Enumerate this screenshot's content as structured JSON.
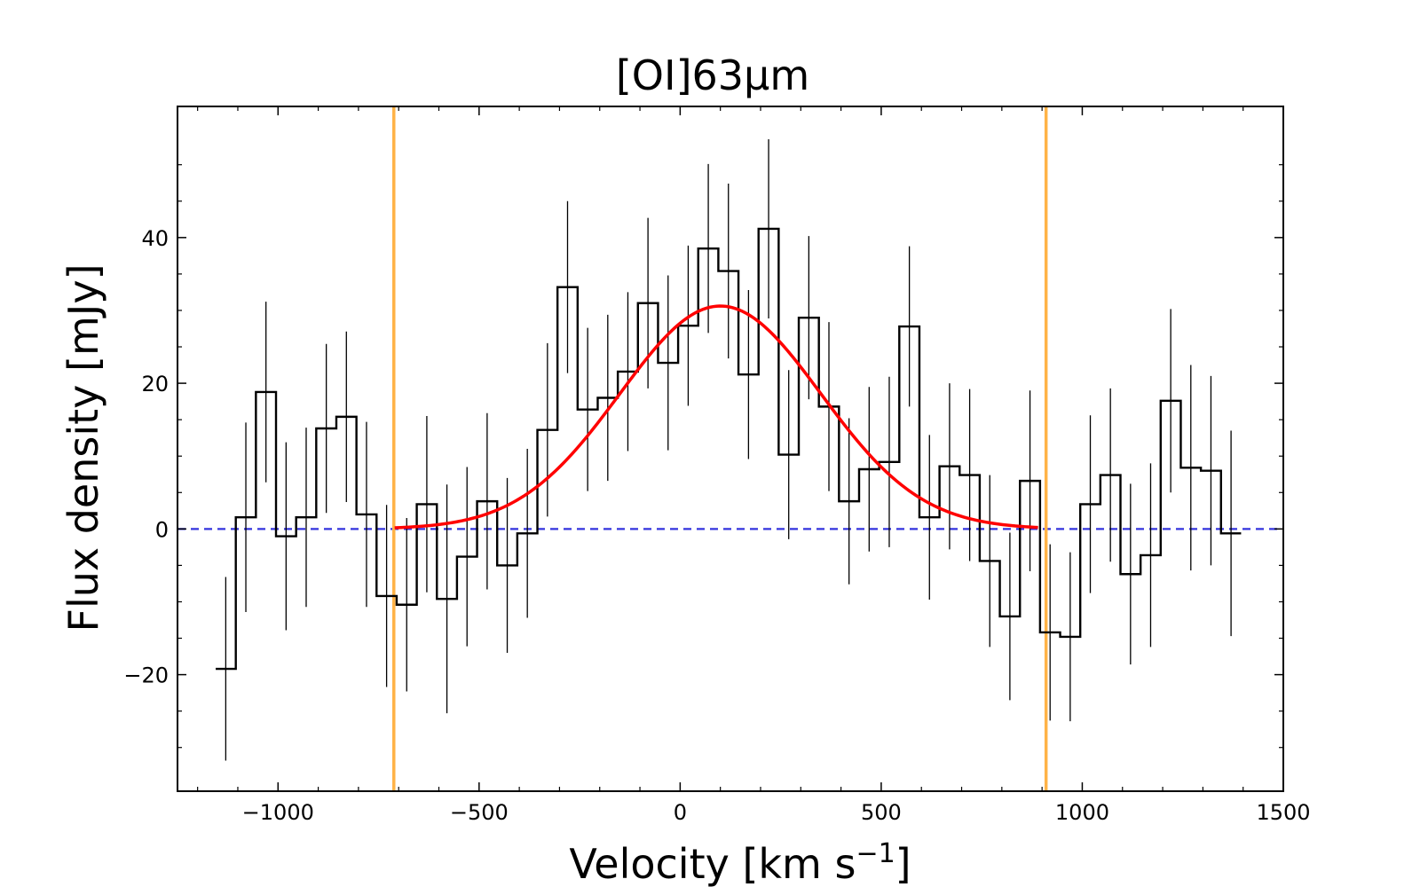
{
  "chart_data": {
    "type": "line",
    "title": "[OI]63μm",
    "xlabel_main": "Velocity [km s",
    "xlabel_sup": "−1",
    "xlabel_end": "]",
    "ylabel": "Flux density [mJy]",
    "xlim": [
      -1250,
      1500
    ],
    "ylim": [
      -36,
      58
    ],
    "xticks": [
      -1000,
      -500,
      0,
      500,
      1000,
      1500
    ],
    "xtick_labels": [
      "−1000",
      "−500",
      "0",
      "500",
      "1000",
      "1500"
    ],
    "yticks": [
      -20,
      0,
      20,
      40
    ],
    "ytick_labels": [
      "−20",
      "0",
      "20",
      "40"
    ],
    "spectrum": {
      "name": "[OI]63μm spectrum",
      "bin_width_kms": 50,
      "velocity": [
        -1130,
        -1080,
        -1030,
        -980,
        -930,
        -880,
        -830,
        -780,
        -730,
        -680,
        -630,
        -580,
        -530,
        -480,
        -430,
        -380,
        -330,
        -280,
        -230,
        -180,
        -130,
        -80,
        -30,
        20,
        70,
        120,
        170,
        220,
        270,
        320,
        370,
        420,
        470,
        520,
        570,
        620,
        670,
        720,
        770,
        820,
        870,
        920,
        970,
        1020,
        1070,
        1120,
        1170,
        1220,
        1270,
        1320,
        1370
      ],
      "flux": [
        -19.2,
        1.6,
        18.8,
        -1.0,
        1.6,
        13.8,
        15.4,
        2.0,
        -9.2,
        -10.4,
        3.4,
        -9.6,
        -3.8,
        3.8,
        -5.0,
        -0.6,
        13.6,
        33.2,
        16.4,
        18.0,
        21.6,
        31.0,
        22.8,
        27.9,
        38.5,
        35.4,
        21.2,
        41.2,
        10.2,
        29.0,
        16.8,
        3.8,
        8.2,
        9.2,
        27.8,
        1.6,
        8.6,
        7.4,
        -4.4,
        -12.0,
        6.6,
        -14.2,
        -14.8,
        3.4,
        7.4,
        -6.2,
        -3.6,
        17.6,
        8.4,
        8.0,
        -0.6
      ],
      "error": [
        12.6,
        13.0,
        12.4,
        12.9,
        12.3,
        11.6,
        11.7,
        12.7,
        12.5,
        11.9,
        12.1,
        15.7,
        12.3,
        12.1,
        12.0,
        11.6,
        11.9,
        11.8,
        11.2,
        11.4,
        10.9,
        11.7,
        12.0,
        11.0,
        11.6,
        12.0,
        11.6,
        12.3,
        11.6,
        11.2,
        11.6,
        11.4,
        11.3,
        11.7,
        11.0,
        11.3,
        11.4,
        11.8,
        11.8,
        11.5,
        12.4,
        12.1,
        11.6,
        12.2,
        11.9,
        12.4,
        12.6,
        12.6,
        14.1,
        13.0,
        14.1
      ],
      "color": "#000000"
    },
    "gaussian_fit": {
      "name": "Gaussian fit",
      "amplitude": 30.6,
      "center": 100,
      "sigma": 250,
      "xrange": [
        -710,
        890
      ],
      "color": "#ff0000"
    },
    "zero_line": {
      "name": "zero level",
      "value": 0,
      "color": "#3333dd"
    },
    "integration_limits": {
      "name": "integration window",
      "values": [
        -712,
        910
      ],
      "color": "#ffb347"
    }
  }
}
